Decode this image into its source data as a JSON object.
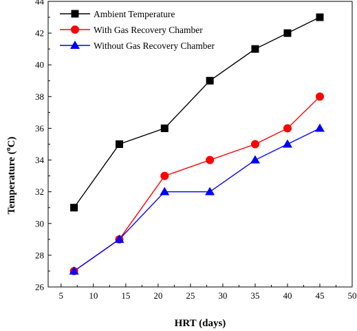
{
  "chart_data": {
    "type": "line",
    "xlabel": "HRT (days)",
    "ylabel_prefix": "Temperature (",
    "ylabel_sup": "o",
    "ylabel_suffix": "C)",
    "xlim": [
      3,
      50
    ],
    "ylim": [
      26,
      44
    ],
    "xticks": [
      5,
      10,
      15,
      20,
      25,
      30,
      35,
      40,
      45,
      50
    ],
    "yticks": [
      26,
      28,
      30,
      32,
      34,
      36,
      38,
      40,
      42,
      44
    ],
    "grid": false,
    "legend_position": "top-left",
    "x": [
      7,
      14,
      21,
      28,
      35,
      40,
      45
    ],
    "series": [
      {
        "name": "Ambient Temperature",
        "values": [
          31,
          35,
          36,
          39,
          41,
          42,
          43
        ],
        "color": "#000000",
        "marker": "square"
      },
      {
        "name": "With Gas Recovery Chamber",
        "values": [
          27,
          29,
          33,
          34,
          35,
          36,
          38
        ],
        "color": "#ff0000",
        "marker": "circle"
      },
      {
        "name": "Without Gas Recovery Chamber",
        "values": [
          27,
          29,
          32,
          32,
          34,
          35,
          36
        ],
        "color": "#0000ff",
        "marker": "triangle"
      }
    ]
  }
}
